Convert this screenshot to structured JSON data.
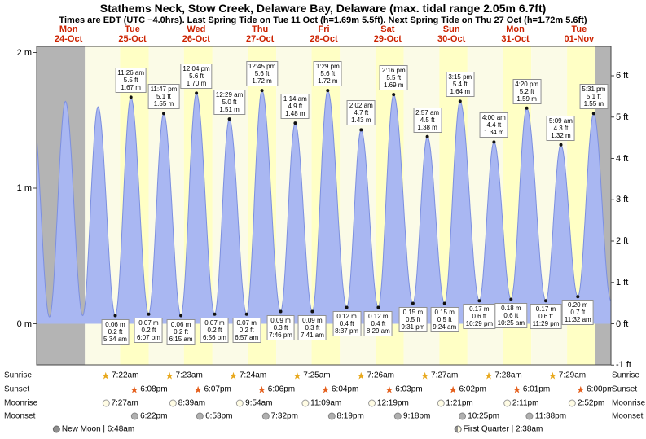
{
  "title": "Stathems Neck, Stow Creek, Delaware Bay, Delaware (max. tidal range 2.05m 6.7ft)",
  "subtitle": "Times are EDT (UTC −4.0hrs). Last Spring Tide on Tue 11 Oct (h=1.69m 5.5ft). Next Spring Tide on Thu 27 Oct (h=1.72m 5.6ft)",
  "colors": {
    "day_band": "#ffffc5",
    "night_band": "#fbfbe7",
    "past_band": "#b4b4b4",
    "tide_fill": "#a9b7f2",
    "tide_stroke": "#7c8fe0",
    "day_label": "#cc2200",
    "sunrise_star": "#e8a81c",
    "sunset_star": "#e55f1c"
  },
  "chart_data": {
    "type": "area",
    "ylim_m": [
      -0.305,
      2.05
    ],
    "y_axis": {
      "left_ticks_m": [
        0,
        1,
        2
      ],
      "left_unit": "m",
      "right_ticks_ft": [
        -1,
        0,
        1,
        2,
        3,
        4,
        5,
        6
      ],
      "right_unit": "ft"
    },
    "x_days": [
      {
        "dow": "Mon",
        "date": "24-Oct"
      },
      {
        "dow": "Tue",
        "date": "25-Oct",
        "sunrise": "7:22am",
        "sunset": "6:08pm",
        "moonrise": "7:27am",
        "moonset": "6:22pm"
      },
      {
        "dow": "Wed",
        "date": "26-Oct",
        "sunrise": "7:23am",
        "sunset": "6:07pm",
        "moonrise": "8:39am",
        "moonset": "6:53pm"
      },
      {
        "dow": "Thu",
        "date": "27-Oct",
        "sunrise": "7:24am",
        "sunset": "6:06pm",
        "moonrise": "9:54am",
        "moonset": "7:32pm"
      },
      {
        "dow": "Fri",
        "date": "28-Oct",
        "sunrise": "7:25am",
        "sunset": "6:04pm",
        "moonrise": "11:09am",
        "moonset": "8:19pm"
      },
      {
        "dow": "Sat",
        "date": "29-Oct",
        "sunrise": "7:26am",
        "sunset": "6:03pm",
        "moonrise": "12:19pm",
        "moonset": "9:18pm"
      },
      {
        "dow": "Sun",
        "date": "30-Oct",
        "sunrise": "7:27am",
        "sunset": "6:02pm",
        "moonrise": "1:21pm",
        "moonset": "10:25pm"
      },
      {
        "dow": "Mon",
        "date": "31-Oct",
        "sunrise": "7:28am",
        "sunset": "6:01pm",
        "moonrise": "2:11pm",
        "moonset": "11:38pm"
      },
      {
        "dow": "Tue",
        "date": "01-Nov",
        "sunrise": "7:29am",
        "sunset": "6:00pm",
        "moonrise": "2:52pm"
      }
    ],
    "tide_events": [
      {
        "day": -1,
        "time": "10:30 pm",
        "height_m": 1.58,
        "type": "high",
        "annotated": false
      },
      {
        "day": 0,
        "time": "4:50 am",
        "height_m": 0.05,
        "type": "low",
        "annotated": false
      },
      {
        "day": 0,
        "time": "10:50 am",
        "height_m": 1.64,
        "type": "high",
        "annotated": false
      },
      {
        "day": 0,
        "time": "5:20 pm",
        "height_m": 0.06,
        "type": "low",
        "annotated": false
      },
      {
        "day": 0,
        "time": "11:05 pm",
        "height_m": 1.6,
        "type": "high",
        "annotated": false
      },
      {
        "day": 1,
        "time": "5:34 am",
        "height_m": 0.06,
        "type": "low",
        "annotated": true,
        "label_lines": [
          "0.06 m",
          "0.2 ft",
          "5:34 am"
        ]
      },
      {
        "day": 1,
        "time": "11:26 am",
        "height_m": 1.67,
        "type": "high",
        "annotated": true,
        "label_lines": [
          "11:26 am",
          "5.5 ft",
          "1.67 m"
        ]
      },
      {
        "day": 1,
        "time": "6:07 pm",
        "height_m": 0.07,
        "type": "low",
        "annotated": true,
        "label_lines": [
          "0.07 m",
          "0.2 ft",
          "6:07 pm"
        ]
      },
      {
        "day": 1,
        "time": "11:47 pm",
        "height_m": 1.55,
        "type": "high",
        "annotated": true,
        "label_lines": [
          "11:47 pm",
          "5.1 ft",
          "1.55 m"
        ]
      },
      {
        "day": 2,
        "time": "6:15 am",
        "height_m": 0.06,
        "type": "low",
        "annotated": true,
        "label_lines": [
          "0.06 m",
          "0.2 ft",
          "6:15 am"
        ]
      },
      {
        "day": 2,
        "time": "12:04 pm",
        "height_m": 1.7,
        "type": "high",
        "annotated": true,
        "label_lines": [
          "12:04 pm",
          "5.6 ft",
          "1.70 m"
        ]
      },
      {
        "day": 2,
        "time": "6:56 pm",
        "height_m": 0.07,
        "type": "low",
        "annotated": true,
        "label_lines": [
          "0.07 m",
          "0.2 ft",
          "6:56 pm"
        ]
      },
      {
        "day": 3,
        "time": "12:29 am",
        "height_m": 1.51,
        "type": "high",
        "annotated": true,
        "label_lines": [
          "12:29 am",
          "5.0 ft",
          "1.51 m"
        ]
      },
      {
        "day": 3,
        "time": "6:57 am",
        "height_m": 0.07,
        "type": "low",
        "annotated": true,
        "label_lines": [
          "0.07 m",
          "0.2 ft",
          "6:57 am"
        ]
      },
      {
        "day": 3,
        "time": "12:45 pm",
        "height_m": 1.72,
        "type": "high",
        "annotated": true,
        "label_lines": [
          "12:45 pm",
          "5.6 ft",
          "1.72 m"
        ]
      },
      {
        "day": 3,
        "time": "7:46 pm",
        "height_m": 0.09,
        "type": "low",
        "annotated": true,
        "label_lines": [
          "0.09 m",
          "0.3 ft",
          "7:46 pm"
        ]
      },
      {
        "day": 4,
        "time": "1:14 am",
        "height_m": 1.48,
        "type": "high",
        "annotated": true,
        "label_lines": [
          "1:14 am",
          "4.9 ft",
          "1.48 m"
        ]
      },
      {
        "day": 4,
        "time": "7:41 am",
        "height_m": 0.09,
        "type": "low",
        "annotated": true,
        "label_lines": [
          "0.09 m",
          "0.3 ft",
          "7:41 am"
        ]
      },
      {
        "day": 4,
        "time": "1:29 pm",
        "height_m": 1.72,
        "type": "high",
        "annotated": true,
        "label_lines": [
          "1:29 pm",
          "5.6 ft",
          "1.72 m"
        ]
      },
      {
        "day": 4,
        "time": "8:37 pm",
        "height_m": 0.12,
        "type": "low",
        "annotated": true,
        "label_lines": [
          "0.12 m",
          "0.4 ft",
          "8:37 pm"
        ]
      },
      {
        "day": 5,
        "time": "2:02 am",
        "height_m": 1.43,
        "type": "high",
        "annotated": true,
        "label_lines": [
          "2:02 am",
          "4.7 ft",
          "1.43 m"
        ]
      },
      {
        "day": 5,
        "time": "8:29 am",
        "height_m": 0.12,
        "type": "low",
        "annotated": true,
        "label_lines": [
          "0.12 m",
          "0.4 ft",
          "8:29 am"
        ]
      },
      {
        "day": 5,
        "time": "2:16 pm",
        "height_m": 1.69,
        "type": "high",
        "annotated": true,
        "label_lines": [
          "2:16 pm",
          "5.5 ft",
          "1.69 m"
        ]
      },
      {
        "day": 5,
        "time": "9:31 pm",
        "height_m": 0.15,
        "type": "low",
        "annotated": true,
        "label_lines": [
          "0.15 m",
          "0.5 ft",
          "9:31 pm"
        ]
      },
      {
        "day": 6,
        "time": "2:57 am",
        "height_m": 1.38,
        "type": "high",
        "annotated": true,
        "label_lines": [
          "2:57 am",
          "4.5 ft",
          "1.38 m"
        ]
      },
      {
        "day": 6,
        "time": "9:24 am",
        "height_m": 0.15,
        "type": "low",
        "annotated": true,
        "label_lines": [
          "0.15 m",
          "0.5 ft",
          "9:24 am"
        ]
      },
      {
        "day": 6,
        "time": "3:15 pm",
        "height_m": 1.64,
        "type": "high",
        "annotated": true,
        "label_lines": [
          "3:15 pm",
          "5.4 ft",
          "1.64 m"
        ]
      },
      {
        "day": 6,
        "time": "10:29 pm",
        "height_m": 0.17,
        "type": "low",
        "annotated": true,
        "label_lines": [
          "0.17 m",
          "0.6 ft",
          "10:29 pm"
        ]
      },
      {
        "day": 7,
        "time": "4:00 am",
        "height_m": 1.34,
        "type": "high",
        "annotated": true,
        "label_lines": [
          "4:00 am",
          "4.4 ft",
          "1.34 m"
        ]
      },
      {
        "day": 7,
        "time": "10:25 am",
        "height_m": 0.18,
        "type": "low",
        "annotated": true,
        "label_lines": [
          "0.18 m",
          "0.6 ft",
          "10:25 am"
        ]
      },
      {
        "day": 7,
        "time": "4:20 pm",
        "height_m": 1.59,
        "type": "high",
        "annotated": true,
        "label_lines": [
          "4:20 pm",
          "5.2 ft",
          "1.59 m"
        ]
      },
      {
        "day": 7,
        "time": "11:29 pm",
        "height_m": 0.17,
        "type": "low",
        "annotated": true,
        "label_lines": [
          "0.17 m",
          "0.6 ft",
          "11:29 pm"
        ]
      },
      {
        "day": 8,
        "time": "5:09 am",
        "height_m": 1.32,
        "type": "high",
        "annotated": true,
        "label_lines": [
          "5:09 am",
          "4.3 ft",
          "1.32 m"
        ]
      },
      {
        "day": 8,
        "time": "11:32 am",
        "height_m": 0.2,
        "type": "low",
        "annotated": true,
        "label_lines": [
          "0.20 m",
          "0.7 ft",
          "11:32 am"
        ]
      },
      {
        "day": 8,
        "time": "5:31 pm",
        "height_m": 1.55,
        "type": "high",
        "annotated": true,
        "label_lines": [
          "5:31 pm",
          "5.1 ft",
          "1.55 m"
        ]
      },
      {
        "day": 8,
        "time": "11:58 pm",
        "height_m": 0.17,
        "type": "low",
        "annotated": false
      }
    ]
  },
  "astro": {
    "row_labels": [
      "Sunrise",
      "Sunset",
      "Moonrise",
      "Moonset"
    ],
    "moon_phases": [
      {
        "name": "New Moon",
        "time": "6:48am"
      },
      {
        "name": "First Quarter",
        "time": "2:38am"
      }
    ]
  }
}
